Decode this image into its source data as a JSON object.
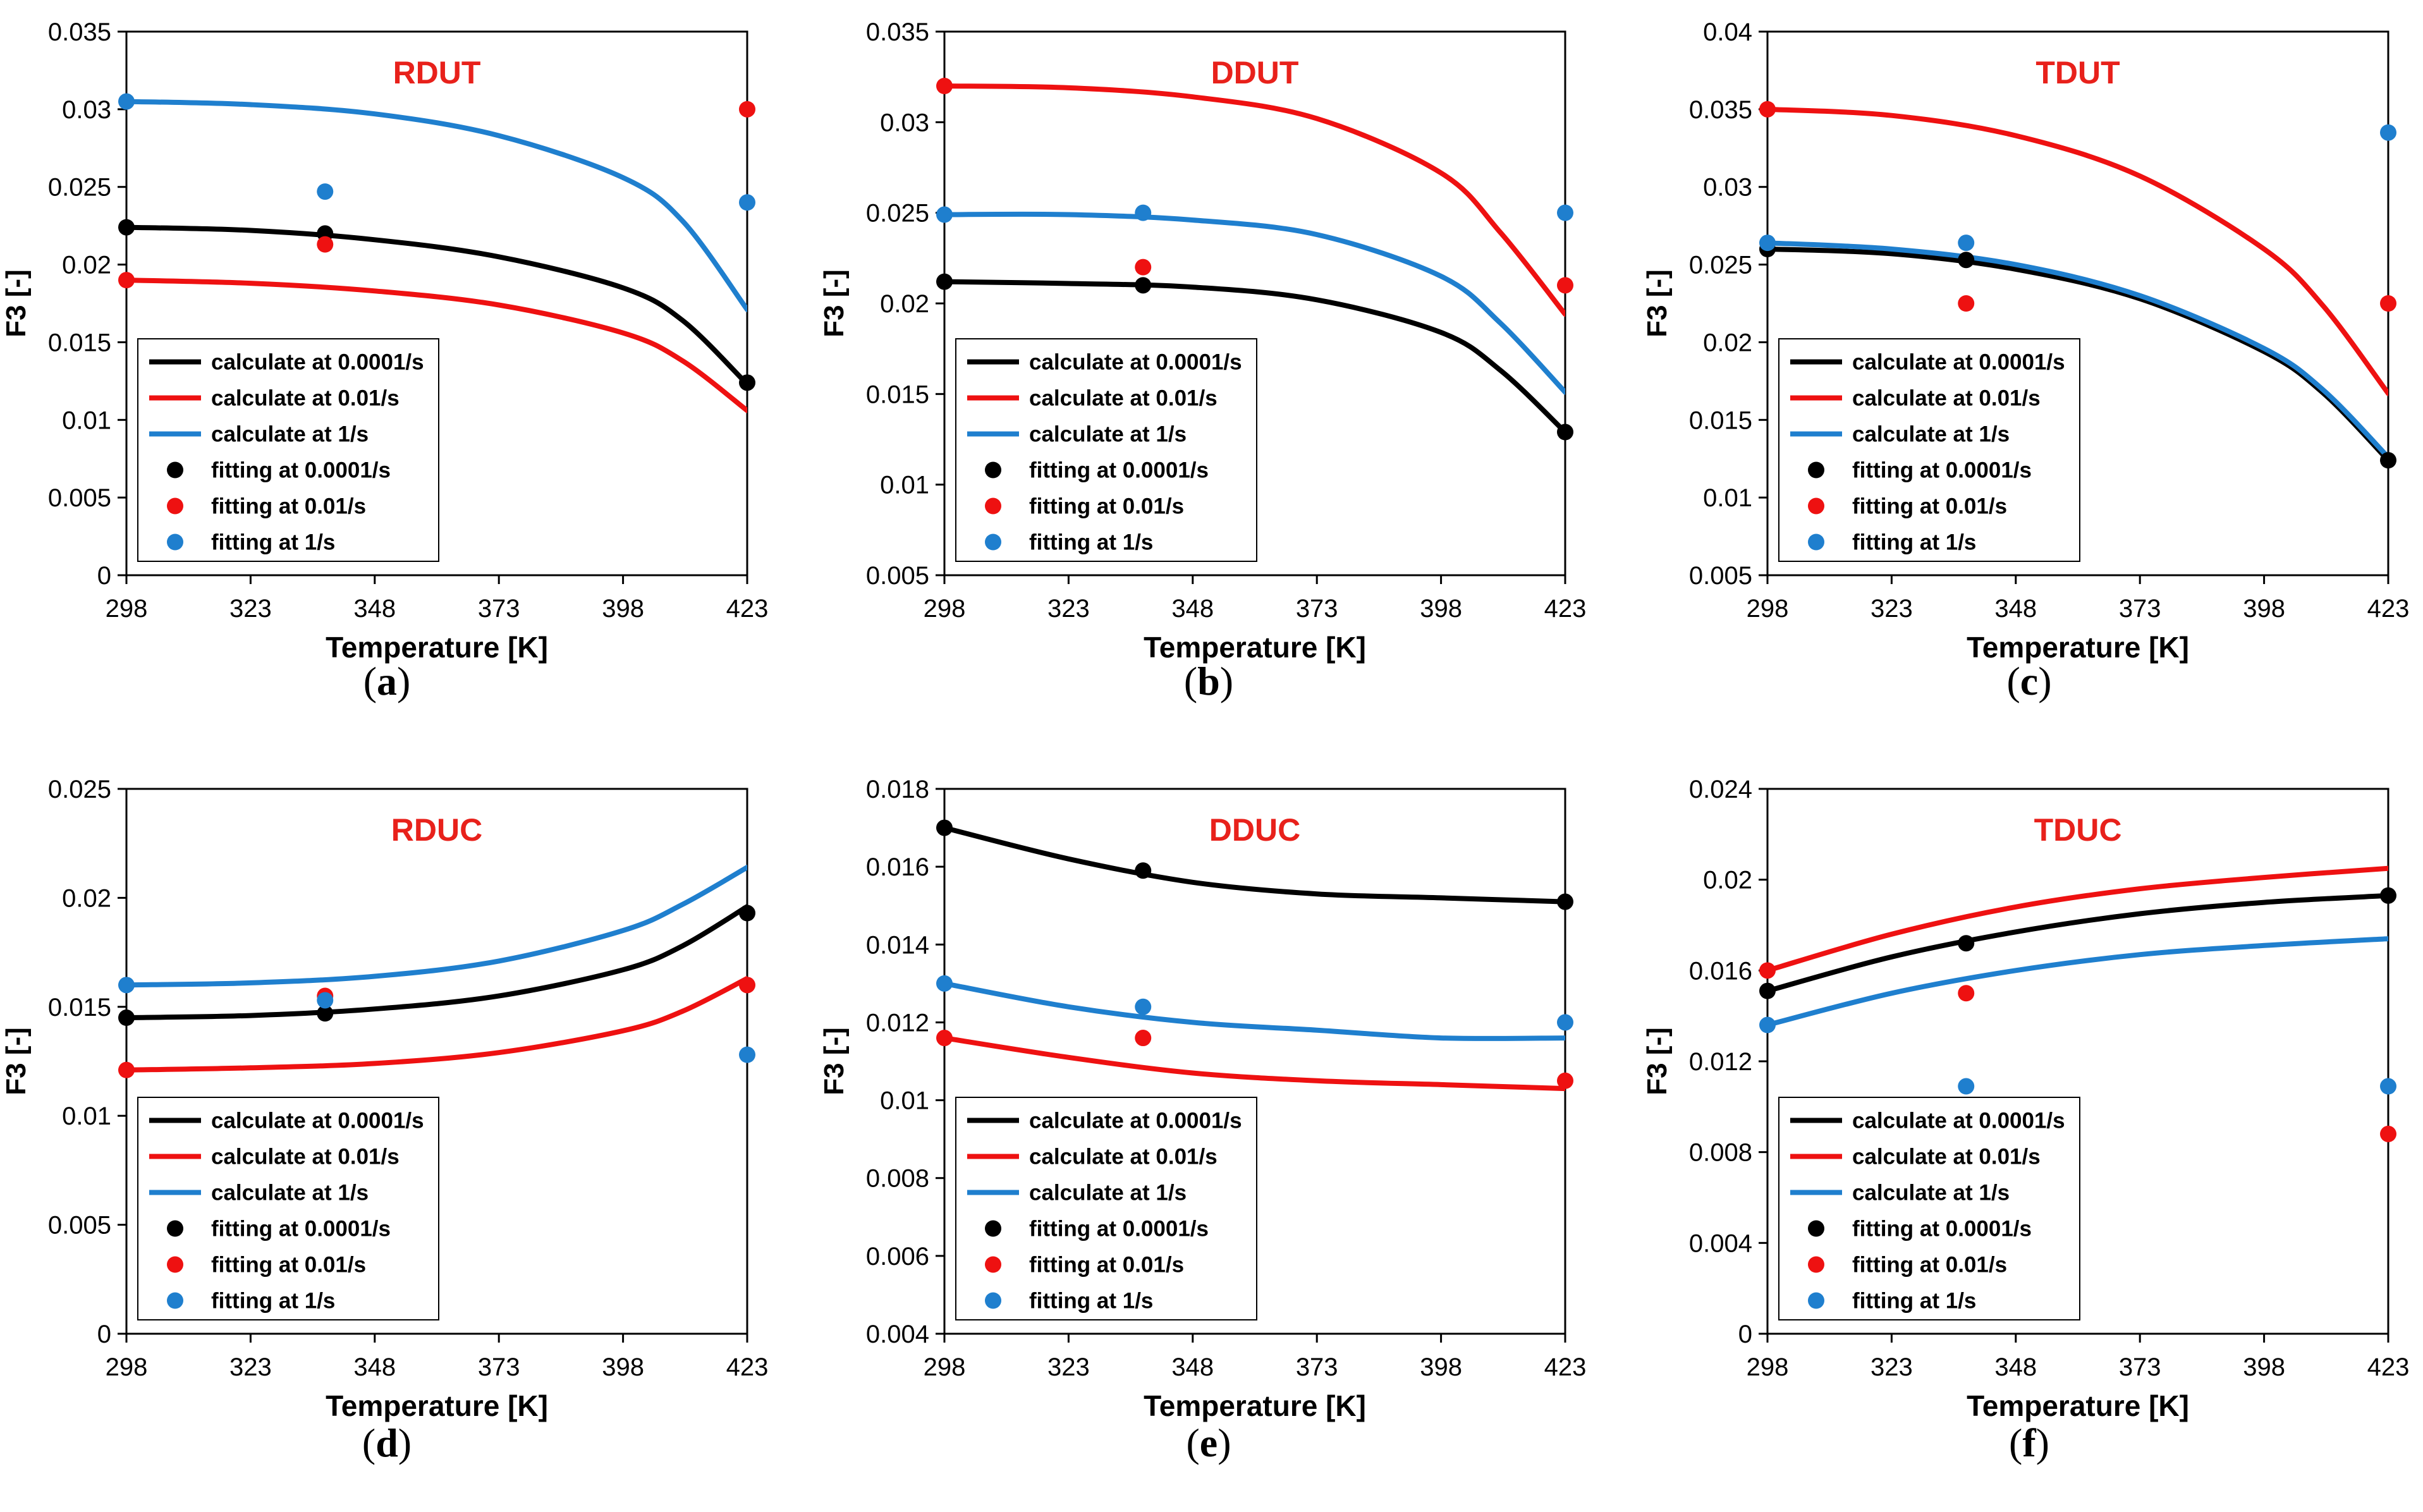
{
  "figure": {
    "colors": {
      "black": "#000000",
      "red": "#ee1111",
      "blue": "#1f7fce",
      "title": "#e8211b",
      "frame": "#000000"
    },
    "legend_entries": [
      {
        "label": "calculate at 0.0001/s",
        "kind": "line",
        "color": "#000000"
      },
      {
        "label": "calculate at 0.01/s",
        "kind": "line",
        "color": "#ee1111"
      },
      {
        "label": "calculate at 1/s",
        "kind": "line",
        "color": "#1f7fce"
      },
      {
        "label": "fitting at 0.0001/s",
        "kind": "marker",
        "color": "#000000"
      },
      {
        "label": "fitting at 0.01/s",
        "kind": "marker",
        "color": "#ee1111"
      },
      {
        "label": "fitting at 1/s",
        "kind": "marker",
        "color": "#1f7fce"
      }
    ]
  },
  "chart_data": [
    {
      "id": "a",
      "caption": "a",
      "type": "line",
      "title": "RDUT",
      "xlabel": "Temperature [K]",
      "ylabel": "F3 [-]",
      "xlim": [
        298,
        423
      ],
      "xticks": [
        298,
        323,
        348,
        373,
        398,
        423
      ],
      "ylim": [
        0,
        0.035
      ],
      "yticks": [
        0,
        0.005,
        0.01,
        0.015,
        0.02,
        0.025,
        0.03,
        0.035
      ],
      "ytick_labels": [
        "0",
        "0.005",
        "0.01",
        "0.015",
        "0.02",
        "0.025",
        "0.03",
        "0.035"
      ],
      "legend_position": "bottom-left",
      "series": [
        {
          "name": "calculate at 0.0001/s",
          "kind": "line",
          "color": "#000000",
          "x": [
            298,
            323,
            348,
            373,
            398,
            410,
            423
          ],
          "y": [
            0.0224,
            0.0222,
            0.0216,
            0.0205,
            0.0185,
            0.0164,
            0.0123
          ]
        },
        {
          "name": "calculate at 0.01/s",
          "kind": "line",
          "color": "#ee1111",
          "x": [
            298,
            323,
            348,
            373,
            398,
            410,
            423
          ],
          "y": [
            0.019,
            0.0188,
            0.0183,
            0.0174,
            0.0156,
            0.0138,
            0.0106
          ]
        },
        {
          "name": "calculate at 1/s",
          "kind": "line",
          "color": "#1f7fce",
          "x": [
            298,
            323,
            348,
            373,
            398,
            410,
            423
          ],
          "y": [
            0.0305,
            0.0303,
            0.0297,
            0.0283,
            0.0256,
            0.0228,
            0.0171
          ]
        },
        {
          "name": "fitting at 0.0001/s",
          "kind": "marker",
          "color": "#000000",
          "x": [
            298,
            338,
            423
          ],
          "y": [
            0.0224,
            0.022,
            0.0124
          ]
        },
        {
          "name": "fitting at 0.01/s",
          "kind": "marker",
          "color": "#ee1111",
          "x": [
            298,
            338,
            423
          ],
          "y": [
            0.019,
            0.0213,
            0.03
          ]
        },
        {
          "name": "fitting at 1/s",
          "kind": "marker",
          "color": "#1f7fce",
          "x": [
            298,
            338,
            423
          ],
          "y": [
            0.0305,
            0.0247,
            0.024
          ]
        }
      ]
    },
    {
      "id": "b",
      "caption": "b",
      "type": "line",
      "title": "DDUT",
      "xlabel": "Temperature [K]",
      "ylabel": "F3 [-]",
      "xlim": [
        298,
        423
      ],
      "xticks": [
        298,
        323,
        348,
        373,
        398,
        423
      ],
      "ylim": [
        0.005,
        0.035
      ],
      "yticks": [
        0.005,
        0.01,
        0.015,
        0.02,
        0.025,
        0.03,
        0.035
      ],
      "ytick_labels": [
        "0.005",
        "0.01",
        "0.015",
        "0.02",
        "0.025",
        "0.03",
        "0.035"
      ],
      "legend_position": "bottom-left",
      "series": [
        {
          "name": "calculate at 0.0001/s",
          "kind": "line",
          "color": "#000000",
          "x": [
            298,
            323,
            348,
            373,
            398,
            410,
            423
          ],
          "y": [
            0.0212,
            0.0211,
            0.0209,
            0.0202,
            0.0184,
            0.0163,
            0.0129
          ]
        },
        {
          "name": "calculate at 0.01/s",
          "kind": "line",
          "color": "#ee1111",
          "x": [
            298,
            323,
            348,
            373,
            398,
            410,
            423
          ],
          "y": [
            0.032,
            0.0319,
            0.0314,
            0.0302,
            0.0272,
            0.0239,
            0.0194
          ]
        },
        {
          "name": "calculate at 1/s",
          "kind": "line",
          "color": "#1f7fce",
          "x": [
            298,
            323,
            348,
            373,
            398,
            410,
            423
          ],
          "y": [
            0.0249,
            0.0249,
            0.0246,
            0.0238,
            0.0215,
            0.0189,
            0.0151
          ]
        },
        {
          "name": "fitting at 0.0001/s",
          "kind": "marker",
          "color": "#000000",
          "x": [
            298,
            338,
            423
          ],
          "y": [
            0.0212,
            0.021,
            0.0129
          ]
        },
        {
          "name": "fitting at 0.01/s",
          "kind": "marker",
          "color": "#ee1111",
          "x": [
            298,
            338,
            423
          ],
          "y": [
            0.032,
            0.022,
            0.021
          ]
        },
        {
          "name": "fitting at 1/s",
          "kind": "marker",
          "color": "#1f7fce",
          "x": [
            298,
            338,
            423
          ],
          "y": [
            0.0249,
            0.025,
            0.025
          ]
        }
      ]
    },
    {
      "id": "c",
      "caption": "c",
      "type": "line",
      "title": "TDUT",
      "xlabel": "Temperature [K]",
      "ylabel": "F3 [-]",
      "xlim": [
        298,
        423
      ],
      "xticks": [
        298,
        323,
        348,
        373,
        398,
        423
      ],
      "ylim": [
        0.005,
        0.04
      ],
      "yticks": [
        0.005,
        0.01,
        0.015,
        0.02,
        0.025,
        0.03,
        0.035,
        0.04
      ],
      "ytick_labels": [
        "0.005",
        "0.01",
        "0.015",
        "0.02",
        "0.025",
        "0.03",
        "0.035",
        "0.04"
      ],
      "legend_position": "bottom-left",
      "series": [
        {
          "name": "calculate at 0.0001/s",
          "kind": "line",
          "color": "#000000",
          "x": [
            298,
            323,
            348,
            373,
            398,
            410,
            423
          ],
          "y": [
            0.026,
            0.0257,
            0.0247,
            0.0228,
            0.0194,
            0.0167,
            0.0124
          ]
        },
        {
          "name": "calculate at 0.01/s",
          "kind": "line",
          "color": "#ee1111",
          "x": [
            298,
            323,
            348,
            373,
            398,
            410,
            423
          ],
          "y": [
            0.035,
            0.0346,
            0.0333,
            0.0307,
            0.026,
            0.0223,
            0.0167
          ]
        },
        {
          "name": "calculate at 1/s",
          "kind": "line",
          "color": "#1f7fce",
          "x": [
            298,
            323,
            348,
            373,
            398,
            410,
            423
          ],
          "y": [
            0.0264,
            0.026,
            0.025,
            0.023,
            0.0196,
            0.0169,
            0.0126
          ]
        },
        {
          "name": "fitting at 0.0001/s",
          "kind": "marker",
          "color": "#000000",
          "x": [
            298,
            338,
            423
          ],
          "y": [
            0.026,
            0.0253,
            0.0124
          ]
        },
        {
          "name": "fitting at 0.01/s",
          "kind": "marker",
          "color": "#ee1111",
          "x": [
            298,
            338,
            423
          ],
          "y": [
            0.035,
            0.0225,
            0.0225
          ]
        },
        {
          "name": "fitting at 1/s",
          "kind": "marker",
          "color": "#1f7fce",
          "x": [
            298,
            338,
            423
          ],
          "y": [
            0.0264,
            0.0264,
            0.0335
          ]
        }
      ]
    },
    {
      "id": "d",
      "caption": "d",
      "type": "line",
      "title": "RDUC",
      "xlabel": "Temperature [K]",
      "ylabel": "F3 [-]",
      "xlim": [
        298,
        423
      ],
      "xticks": [
        298,
        323,
        348,
        373,
        398,
        423
      ],
      "ylim": [
        0,
        0.025
      ],
      "yticks": [
        0,
        0.005,
        0.01,
        0.015,
        0.02,
        0.025
      ],
      "ytick_labels": [
        "0",
        "0.005",
        "0.01",
        "0.015",
        "0.02",
        "0.025"
      ],
      "legend_position": "bottom-left",
      "series": [
        {
          "name": "calculate at 0.0001/s",
          "kind": "line",
          "color": "#000000",
          "x": [
            298,
            323,
            348,
            373,
            398,
            410,
            423
          ],
          "y": [
            0.0145,
            0.0146,
            0.0149,
            0.0155,
            0.0167,
            0.0178,
            0.0196
          ]
        },
        {
          "name": "calculate at 0.01/s",
          "kind": "line",
          "color": "#ee1111",
          "x": [
            298,
            323,
            348,
            373,
            398,
            410,
            423
          ],
          "y": [
            0.0121,
            0.0122,
            0.0124,
            0.0129,
            0.0139,
            0.0148,
            0.0163
          ]
        },
        {
          "name": "calculate at 1/s",
          "kind": "line",
          "color": "#1f7fce",
          "x": [
            298,
            323,
            348,
            373,
            398,
            410,
            423
          ],
          "y": [
            0.016,
            0.0161,
            0.0164,
            0.0171,
            0.0185,
            0.0197,
            0.0214
          ]
        },
        {
          "name": "fitting at 0.0001/s",
          "kind": "marker",
          "color": "#000000",
          "x": [
            298,
            338,
            423
          ],
          "y": [
            0.0145,
            0.0147,
            0.0193
          ]
        },
        {
          "name": "fitting at 0.01/s",
          "kind": "marker",
          "color": "#ee1111",
          "x": [
            298,
            338,
            423
          ],
          "y": [
            0.0121,
            0.0155,
            0.016
          ]
        },
        {
          "name": "fitting at 1/s",
          "kind": "marker",
          "color": "#1f7fce",
          "x": [
            298,
            338,
            423
          ],
          "y": [
            0.016,
            0.0153,
            0.0128
          ]
        }
      ]
    },
    {
      "id": "e",
      "caption": "e",
      "type": "line",
      "title": "DDUC",
      "xlabel": "Temperature [K]",
      "ylabel": "F3 [-]",
      "xlim": [
        298,
        423
      ],
      "xticks": [
        298,
        323,
        348,
        373,
        398,
        423
      ],
      "ylim": [
        0.004,
        0.018
      ],
      "yticks": [
        0.004,
        0.006,
        0.008,
        0.01,
        0.012,
        0.014,
        0.016,
        0.018
      ],
      "ytick_labels": [
        "0.004",
        "0.006",
        "0.008",
        "0.01",
        "0.012",
        "0.014",
        "0.016",
        "0.018"
      ],
      "legend_position": "bottom-left",
      "series": [
        {
          "name": "calculate at 0.0001/s",
          "kind": "line",
          "color": "#000000",
          "x": [
            298,
            323,
            348,
            373,
            398,
            423
          ],
          "y": [
            0.017,
            0.0162,
            0.0156,
            0.0153,
            0.0152,
            0.0151
          ]
        },
        {
          "name": "calculate at 0.01/s",
          "kind": "line",
          "color": "#ee1111",
          "x": [
            298,
            323,
            348,
            373,
            398,
            423
          ],
          "y": [
            0.0116,
            0.0111,
            0.0107,
            0.0105,
            0.0104,
            0.0103
          ]
        },
        {
          "name": "calculate at 1/s",
          "kind": "line",
          "color": "#1f7fce",
          "x": [
            298,
            323,
            348,
            373,
            398,
            423
          ],
          "y": [
            0.013,
            0.0124,
            0.012,
            0.0118,
            0.0116,
            0.0116
          ]
        },
        {
          "name": "fitting at 0.0001/s",
          "kind": "marker",
          "color": "#000000",
          "x": [
            298,
            338,
            423
          ],
          "y": [
            0.017,
            0.0159,
            0.0151
          ]
        },
        {
          "name": "fitting at 0.01/s",
          "kind": "marker",
          "color": "#ee1111",
          "x": [
            298,
            338,
            423
          ],
          "y": [
            0.0116,
            0.0116,
            0.0105
          ]
        },
        {
          "name": "fitting at 1/s",
          "kind": "marker",
          "color": "#1f7fce",
          "x": [
            298,
            338,
            423
          ],
          "y": [
            0.013,
            0.0124,
            0.012
          ]
        }
      ]
    },
    {
      "id": "f",
      "caption": "f",
      "type": "line",
      "title": "TDUC",
      "xlabel": "Temperature [K]",
      "ylabel": "F3 [-]",
      "xlim": [
        298,
        423
      ],
      "xticks": [
        298,
        323,
        348,
        373,
        398,
        423
      ],
      "ylim": [
        0,
        0.024
      ],
      "yticks": [
        0,
        0.004,
        0.008,
        0.012,
        0.016,
        0.02,
        0.024
      ],
      "ytick_labels": [
        "0",
        "0.004",
        "0.008",
        "0.012",
        "0.016",
        "0.02",
        "0.024"
      ],
      "legend_position": "bottom-left",
      "series": [
        {
          "name": "calculate at 0.0001/s",
          "kind": "line",
          "color": "#000000",
          "x": [
            298,
            323,
            348,
            373,
            398,
            423
          ],
          "y": [
            0.0151,
            0.0166,
            0.0177,
            0.0185,
            0.019,
            0.0193
          ]
        },
        {
          "name": "calculate at 0.01/s",
          "kind": "line",
          "color": "#ee1111",
          "x": [
            298,
            323,
            348,
            373,
            398,
            423
          ],
          "y": [
            0.016,
            0.0176,
            0.0188,
            0.0196,
            0.0201,
            0.0205
          ]
        },
        {
          "name": "calculate at 1/s",
          "kind": "line",
          "color": "#1f7fce",
          "x": [
            298,
            323,
            348,
            373,
            398,
            423
          ],
          "y": [
            0.0136,
            0.015,
            0.016,
            0.0167,
            0.0171,
            0.0174
          ]
        },
        {
          "name": "fitting at 0.0001/s",
          "kind": "marker",
          "color": "#000000",
          "x": [
            298,
            338,
            423
          ],
          "y": [
            0.0151,
            0.0172,
            0.0193
          ]
        },
        {
          "name": "fitting at 0.01/s",
          "kind": "marker",
          "color": "#ee1111",
          "x": [
            298,
            338,
            423
          ],
          "y": [
            0.016,
            0.015,
            0.0088
          ]
        },
        {
          "name": "fitting at 1/s",
          "kind": "marker",
          "color": "#1f7fce",
          "x": [
            298,
            338,
            423
          ],
          "y": [
            0.0136,
            0.0109,
            0.0109
          ]
        }
      ]
    }
  ]
}
